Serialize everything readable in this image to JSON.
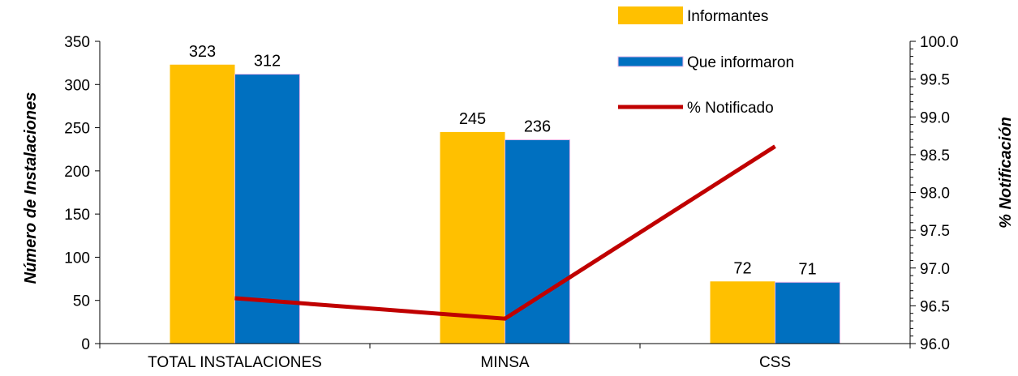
{
  "chart_data": {
    "type": "bar",
    "categories": [
      "TOTAL INSTALACIONES",
      "MINSA",
      "CSS"
    ],
    "series": [
      {
        "name": "Informantes",
        "values": [
          323,
          245,
          72
        ],
        "color": "#FFC000",
        "axis": "left",
        "kind": "bar"
      },
      {
        "name": "Que informaron",
        "values": [
          312,
          236,
          71
        ],
        "color": "#0070C0",
        "axis": "left",
        "kind": "bar"
      },
      {
        "name": "% Notificado",
        "values": [
          96.6,
          96.33,
          98.61
        ],
        "color": "#C00000",
        "axis": "right",
        "kind": "line"
      }
    ],
    "title": "",
    "ylabel": "Número de Instalaciones",
    "y2label": "% Notificación",
    "ylim": [
      0,
      350
    ],
    "y2lim": [
      96.0,
      100.0
    ],
    "yticks": [
      "0",
      "50",
      "100",
      "150",
      "200",
      "250",
      "300",
      "350"
    ],
    "y2ticks": [
      "96.0",
      "96.5",
      "97.0",
      "97.5",
      "98.0",
      "98.5",
      "99.0",
      "99.5",
      "100.0"
    ],
    "legend_position": "top-right",
    "grid": false
  }
}
